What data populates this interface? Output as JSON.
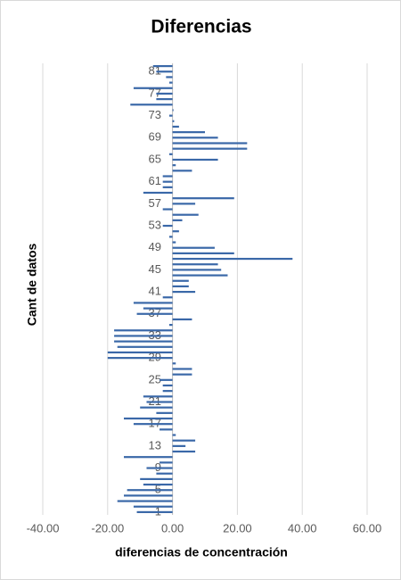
{
  "chart_data": {
    "type": "barh",
    "title": "Diferencias",
    "x_label": "diferencias de concentración",
    "y_label": "Cant de datos",
    "categories": [
      "1",
      null,
      null,
      null,
      "5",
      null,
      null,
      null,
      "9",
      null,
      null,
      null,
      "13",
      null,
      null,
      null,
      "17",
      null,
      null,
      null,
      "21",
      null,
      null,
      null,
      "25",
      null,
      null,
      null,
      "29",
      null,
      null,
      null,
      "33",
      null,
      null,
      null,
      "37",
      null,
      null,
      null,
      "41",
      null,
      null,
      null,
      "45",
      null,
      null,
      null,
      "49",
      null,
      null,
      null,
      "53",
      null,
      null,
      null,
      "57",
      null,
      null,
      null,
      "61",
      null,
      null,
      null,
      "65",
      null,
      null,
      null,
      "69",
      null,
      null,
      null,
      "73",
      null,
      null,
      null,
      "77",
      null,
      null,
      null,
      "81",
      null
    ],
    "values": [
      -11,
      -12,
      -17,
      -15,
      -14,
      -9,
      -10,
      -5,
      -8,
      -4,
      -15,
      7,
      4,
      7,
      1,
      -4,
      -12,
      -15,
      -5,
      -10,
      -8,
      -9,
      -3,
      -3,
      -4,
      6,
      6,
      1,
      -20,
      -20,
      -17,
      -18,
      -18,
      -18,
      -1,
      6,
      -11,
      -9,
      -12,
      -3,
      7,
      5,
      5,
      17,
      15,
      14,
      37,
      19,
      13,
      1,
      -1,
      2,
      -3,
      3,
      8,
      -3,
      7,
      19,
      -9,
      -3,
      -3,
      -3,
      6,
      1,
      14,
      -1,
      23,
      23,
      14,
      10,
      2,
      0.5,
      -1,
      0.3,
      -13,
      -5,
      -5,
      -12,
      -1,
      -2,
      -5,
      -6
    ],
    "color": "#3a68a8",
    "xlim": [
      -40,
      60
    ],
    "xticks": [
      {
        "value": -40,
        "label": "-40.00"
      },
      {
        "value": -20,
        "label": "-20.00"
      },
      {
        "value": 0,
        "label": "0.00"
      },
      {
        "value": 20,
        "label": "20.00"
      },
      {
        "value": 40,
        "label": "40.00"
      },
      {
        "value": 60,
        "label": "60.00"
      }
    ],
    "grid": true
  }
}
